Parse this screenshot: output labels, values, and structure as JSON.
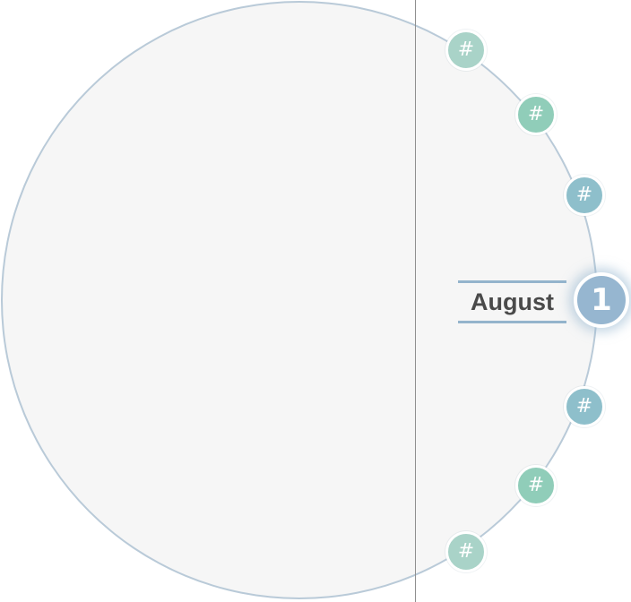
{
  "colors": {
    "wheel_fill": "#f6f6f6",
    "wheel_border": "#b9cad8",
    "divider": "#8f8f8f",
    "dot_light_teal": "#a9d3c8",
    "dot_teal": "#90cdb9",
    "dot_blue": "#8ebfcb",
    "active_dot": "#96b6d0",
    "label_rule": "#94b4cc",
    "label_text": "#4a4a4a"
  },
  "wheel": {
    "dots": [
      {
        "label": "#",
        "color": "light-teal"
      },
      {
        "label": "#",
        "color": "teal"
      },
      {
        "label": "#",
        "color": "blue"
      },
      {
        "label": "#",
        "color": "blue"
      },
      {
        "label": "#",
        "color": "teal"
      },
      {
        "label": "#",
        "color": "light-teal"
      }
    ],
    "active": {
      "number": "1",
      "month": "August"
    }
  }
}
